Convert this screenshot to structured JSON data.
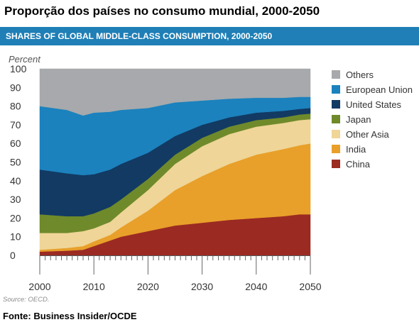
{
  "page_title": "Proporção dos países no consumo mundial, 2000-2050",
  "banner_title": "SHARES OF GLOBAL MIDDLE-CLASS CONSUMPTION, 2000-2050",
  "banner_color": "#1f7fb6",
  "source": "Source: OECD.",
  "footer": "Fonte: Business Insider/OCDE",
  "chart_data": {
    "type": "area",
    "stacked": true,
    "ylabel": "Percent",
    "xlabel": "",
    "ylim": [
      0,
      100
    ],
    "xlim": [
      2000,
      2050
    ],
    "yticks": [
      0,
      10,
      20,
      30,
      40,
      50,
      60,
      70,
      80,
      90,
      100
    ],
    "xticks": [
      2000,
      2010,
      2020,
      2030,
      2040,
      2050
    ],
    "legend_position": "right",
    "x": [
      2000,
      2005,
      2008,
      2010,
      2013,
      2015,
      2020,
      2025,
      2030,
      2035,
      2040,
      2045,
      2048,
      2050
    ],
    "series": [
      {
        "name": "China",
        "color": "#9b2a22",
        "values": [
          2,
          2.5,
          3,
          5,
          8,
          10,
          13,
          16,
          17.5,
          19,
          20,
          21,
          22,
          22
        ]
      },
      {
        "name": "India",
        "color": "#e8a02a",
        "values": [
          1,
          1.5,
          2,
          2.5,
          3,
          5,
          11,
          19,
          25,
          30,
          34,
          36,
          37,
          38
        ]
      },
      {
        "name": "Other Asia",
        "color": "#efd598",
        "values": [
          9,
          8,
          8,
          7,
          7,
          8,
          11,
          14,
          16,
          16,
          15,
          14,
          13.5,
          13
        ]
      },
      {
        "name": "Japan",
        "color": "#6f8a2a",
        "values": [
          10,
          9,
          8,
          8,
          8,
          7,
          6,
          5,
          4.5,
          4,
          3.5,
          3,
          3,
          3
        ]
      },
      {
        "name": "United States",
        "color": "#123a63",
        "values": [
          24,
          23,
          22,
          21,
          20,
          19,
          14,
          10,
          7,
          5,
          4,
          3.5,
          3,
          3
        ]
      },
      {
        "name": "European Union",
        "color": "#1b82bd",
        "values": [
          34,
          34,
          32,
          33,
          31,
          29,
          24,
          18,
          13,
          10,
          8,
          7,
          6.5,
          6
        ]
      },
      {
        "name": "Others",
        "color": "#a7a9ac",
        "values": [
          20,
          22,
          25,
          23.5,
          23,
          22,
          21,
          18,
          17,
          16,
          15.5,
          15.5,
          15,
          15
        ]
      }
    ]
  }
}
